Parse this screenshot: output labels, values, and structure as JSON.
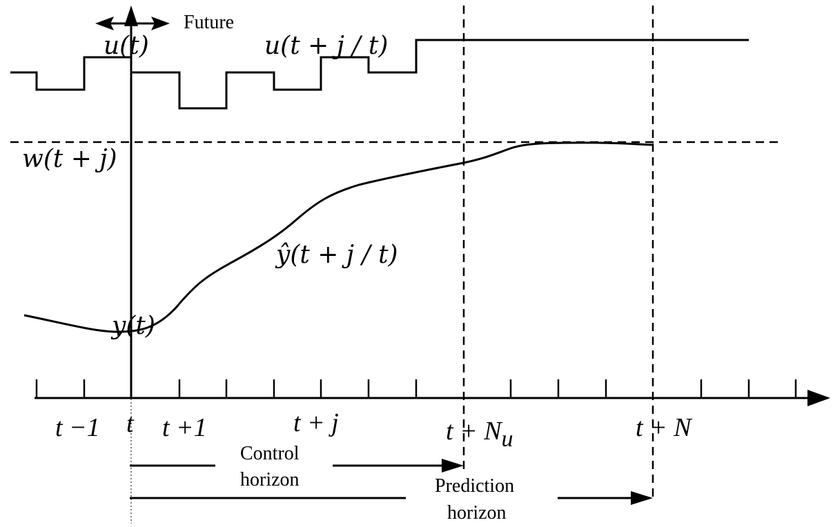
{
  "labels": {
    "future": "Future",
    "u_t": "u(t)",
    "u_future": "u(t + j / t)",
    "w": "w(t + j)",
    "y_hat": "ŷ(t + j / t)",
    "y_t": "y(t)"
  },
  "ticks": {
    "t_minus_1": "t −1",
    "t": "t",
    "t_plus_1": "t +1",
    "t_plus_j": "t + j",
    "t_plus_Nu_base": "t + N",
    "t_plus_Nu_sub": "u",
    "t_plus_N": "t + N"
  },
  "horizons": {
    "control_line1": "Control",
    "control_line2": "horizon",
    "prediction_line1": "Prediction",
    "prediction_line2": "horizon"
  }
}
